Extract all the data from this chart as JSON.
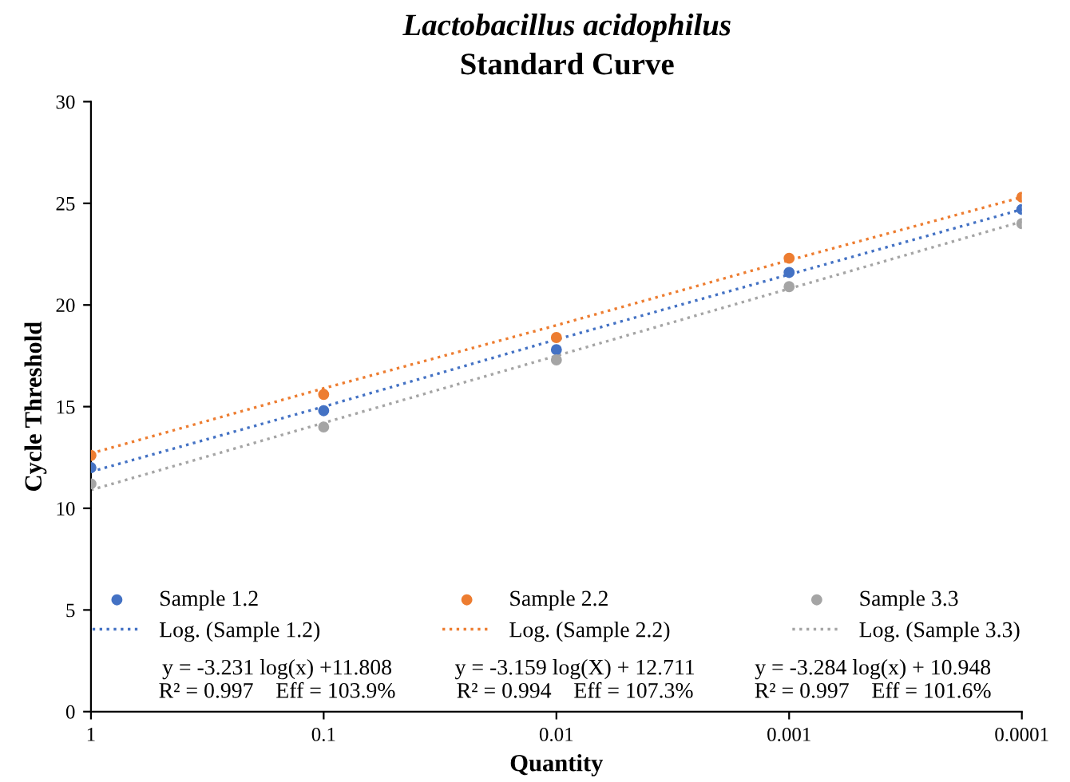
{
  "chart_data": {
    "type": "scatter",
    "title": "Lactobacillus acidophilus",
    "subtitle": "Standard Curve",
    "xlabel": "Quantity",
    "ylabel": "Cycle Threshold",
    "x": [
      1,
      0.1,
      0.01,
      0.001,
      0.0001
    ],
    "series": [
      {
        "name": "Sample 1.2",
        "color": "#4472c4",
        "values": [
          12.0,
          14.8,
          17.8,
          21.6,
          24.7
        ]
      },
      {
        "name": "Sample 2.2",
        "color": "#ed7d31",
        "values": [
          12.6,
          15.6,
          18.4,
          22.3,
          25.3
        ]
      },
      {
        "name": "Sample 3.3",
        "color": "#a5a5a5",
        "values": [
          11.2,
          14.0,
          17.3,
          20.9,
          24.0
        ]
      },
      {
        "name": "Log. (Sample 1.2)",
        "type": "line",
        "line_style": "dotted",
        "marker": "none",
        "color": "#4472c4",
        "values": [
          11.8,
          15.0,
          18.3,
          21.5,
          24.7
        ]
      },
      {
        "name": "Log. (Sample 2.2)",
        "type": "line",
        "line_style": "dotted",
        "marker": "none",
        "color": "#ed7d31",
        "values": [
          12.7,
          15.9,
          19.0,
          22.2,
          25.3
        ]
      },
      {
        "name": "Log. (Sample 3.3)",
        "type": "line",
        "line_style": "dotted",
        "marker": "none",
        "color": "#a5a5a5",
        "values": [
          10.9,
          14.2,
          17.5,
          20.8,
          24.1
        ]
      }
    ],
    "annotations": [
      "y = -3.231 log(x) +11.808\nR² = 0.997    Eff = 103.9%",
      "y = -3.159 log(X) + 12.711\nR² = 0.994    Eff = 107.3%",
      "y = -3.284 log(x) + 10.948\nR² = 0.997    Eff = 101.6%"
    ],
    "log": "x",
    "xlim": [
      1,
      0.0001
    ],
    "xticks": [
      1,
      0.1,
      0.01,
      0.001,
      0.0001
    ],
    "ylim": [
      0,
      30
    ],
    "yticks": [
      0,
      5,
      10,
      15,
      20,
      25,
      30
    ],
    "marker": "circle",
    "grid": false,
    "legend": "bottom"
  }
}
